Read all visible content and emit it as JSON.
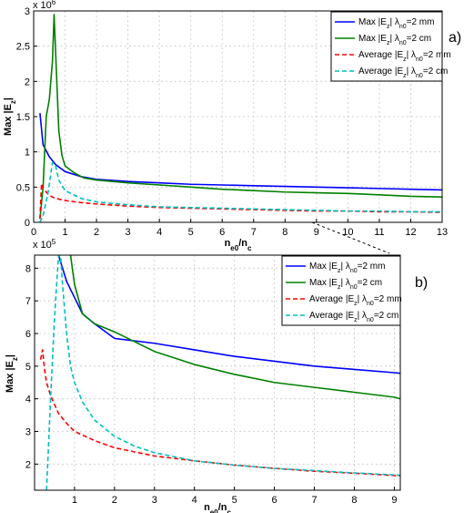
{
  "chart_data": [
    {
      "type": "line",
      "panel_label": "a)",
      "xlabel": "n_e0/n_c",
      "ylabel": "Max |E_z|",
      "y_multiplier": "x 10^6",
      "xlim": [
        0,
        13
      ],
      "ylim": [
        0,
        3
      ],
      "xticks": [
        0,
        1,
        2,
        3,
        4,
        5,
        6,
        7,
        8,
        9,
        10,
        11,
        12,
        13
      ],
      "yticks": [
        0,
        0.5,
        1,
        1.5,
        2,
        2.5,
        3
      ],
      "ytick_labels": [
        "0",
        "0.5",
        "1",
        "1.5",
        "2",
        "2.5",
        "3"
      ],
      "grid": true,
      "legend_position": "top-right",
      "series": [
        {
          "name": "Max |E_z| λ_n0=2 mm",
          "color": "#0000ff",
          "dash": "solid",
          "x": [
            0.2,
            0.3,
            0.5,
            0.7,
            1.0,
            1.5,
            2,
            3,
            4,
            5,
            6,
            7,
            8,
            9,
            10,
            11,
            12,
            13
          ],
          "y": [
            1.55,
            1.1,
            0.93,
            0.82,
            0.72,
            0.65,
            0.61,
            0.58,
            0.56,
            0.54,
            0.53,
            0.52,
            0.51,
            0.5,
            0.49,
            0.48,
            0.47,
            0.46
          ]
        },
        {
          "name": "Max |E_z| λ_n0=2 cm",
          "color": "#008000",
          "dash": "solid",
          "x": [
            0.2,
            0.3,
            0.4,
            0.5,
            0.6,
            0.65,
            0.7,
            0.8,
            0.9,
            1.0,
            1.3,
            1.6,
            2,
            3,
            4,
            5,
            6,
            7,
            8,
            9,
            10,
            11,
            12,
            13
          ],
          "y": [
            0.05,
            0.5,
            1.5,
            1.75,
            2.3,
            2.95,
            2.4,
            1.3,
            0.95,
            0.8,
            0.7,
            0.63,
            0.6,
            0.56,
            0.53,
            0.5,
            0.47,
            0.45,
            0.43,
            0.42,
            0.41,
            0.39,
            0.37,
            0.36
          ]
        },
        {
          "name": "Average |E_z| λ_n0=2 mm",
          "color": "#ff0000",
          "dash": "dashed",
          "x": [
            0.2,
            0.25,
            0.3,
            0.5,
            0.7,
            1,
            1.5,
            2,
            3,
            4,
            5,
            6,
            7,
            8,
            9,
            10,
            11,
            12,
            13
          ],
          "y": [
            0.05,
            0.55,
            0.48,
            0.38,
            0.34,
            0.31,
            0.28,
            0.26,
            0.23,
            0.21,
            0.2,
            0.19,
            0.18,
            0.17,
            0.16,
            0.16,
            0.15,
            0.15,
            0.14
          ]
        },
        {
          "name": "Average |E_z| λ_n0=2 cm",
          "color": "#00bfbf",
          "dash": "dashed",
          "x": [
            0.2,
            0.3,
            0.45,
            0.6,
            0.7,
            0.8,
            1,
            1.5,
            2,
            3,
            4,
            5,
            6,
            7,
            8,
            9,
            10,
            11,
            12,
            13
          ],
          "y": [
            0.0,
            0.1,
            0.4,
            0.85,
            0.8,
            0.6,
            0.45,
            0.34,
            0.29,
            0.25,
            0.22,
            0.21,
            0.2,
            0.19,
            0.18,
            0.17,
            0.16,
            0.16,
            0.15,
            0.15
          ]
        }
      ]
    },
    {
      "type": "line",
      "panel_label": "b)",
      "xlabel": "n_e0/n_c",
      "ylabel": "Max |E_z|",
      "y_multiplier": "x 10^5",
      "xlim": [
        0,
        9.15
      ],
      "ylim": [
        1.2,
        8.4
      ],
      "xticks": [
        1,
        2,
        3,
        4,
        5,
        6,
        7,
        8,
        9
      ],
      "yticks": [
        2,
        3,
        4,
        5,
        6,
        7,
        8
      ],
      "ytick_labels": [
        "2",
        "3",
        "4",
        "5",
        "6",
        "7",
        "8"
      ],
      "grid": true,
      "legend_position": "top-right",
      "series": [
        {
          "name": "Max |E_z| λ_n0=2 mm",
          "color": "#0000ff",
          "dash": "solid",
          "x": [
            0.6,
            0.8,
            1.0,
            1.2,
            1.5,
            2,
            3,
            4,
            5,
            6,
            7,
            8,
            9,
            9.15
          ],
          "y": [
            8.4,
            7.6,
            7.1,
            6.6,
            6.3,
            5.85,
            5.7,
            5.5,
            5.3,
            5.15,
            5.0,
            4.9,
            4.8,
            4.78
          ]
        },
        {
          "name": "Max |E_z| λ_n0=2 cm",
          "color": "#008000",
          "dash": "solid",
          "x": [
            0.9,
            1.0,
            1.2,
            1.5,
            2,
            2.5,
            3,
            4,
            5,
            6,
            7,
            8,
            9,
            9.15
          ],
          "y": [
            8.4,
            7.5,
            6.6,
            6.3,
            6.05,
            5.75,
            5.45,
            5.05,
            4.75,
            4.5,
            4.35,
            4.2,
            4.05,
            4.0
          ]
        },
        {
          "name": "Average |E_z| λ_n0=2 mm",
          "color": "#ff0000",
          "dash": "dashed",
          "x": [
            0.15,
            0.2,
            0.25,
            0.3,
            0.4,
            0.6,
            0.8,
            1.0,
            1.5,
            2,
            3,
            4,
            5,
            6,
            7,
            8,
            9,
            9.15
          ],
          "y": [
            5.2,
            5.5,
            4.9,
            4.5,
            4.1,
            3.55,
            3.25,
            3.0,
            2.72,
            2.5,
            2.25,
            2.1,
            1.97,
            1.87,
            1.78,
            1.72,
            1.65,
            1.64
          ]
        },
        {
          "name": "Average |E_z| λ_n0=2 cm",
          "color": "#00bfbf",
          "dash": "dashed",
          "x": [
            0.3,
            0.4,
            0.5,
            0.6,
            0.65,
            0.7,
            0.8,
            0.9,
            1.0,
            1.2,
            1.5,
            2,
            2.5,
            3,
            4,
            5,
            6,
            7,
            8,
            9,
            9.15
          ],
          "y": [
            1.2,
            4.0,
            6.5,
            8.4,
            8.4,
            7.5,
            6.0,
            5.0,
            4.5,
            3.9,
            3.35,
            2.85,
            2.55,
            2.35,
            2.1,
            1.97,
            1.87,
            1.8,
            1.73,
            1.67,
            1.66
          ]
        }
      ]
    }
  ]
}
